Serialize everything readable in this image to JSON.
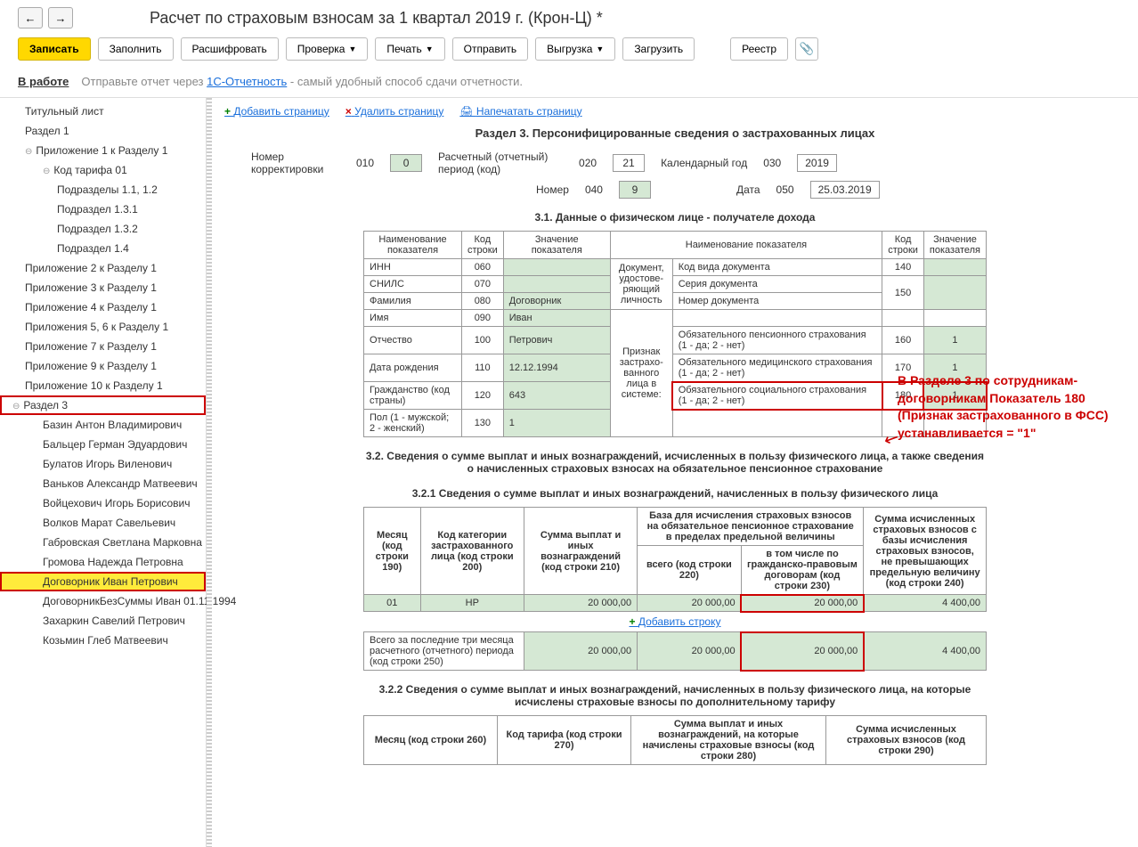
{
  "title": "Расчет по страховым взносам за 1 квартал 2019 г. (Крон-Ц) *",
  "toolbar": {
    "write": "Записать",
    "fill": "Заполнить",
    "decode": "Расшифровать",
    "check": "Проверка",
    "print": "Печать",
    "send": "Отправить",
    "export": "Выгрузка",
    "import": "Загрузить",
    "registry": "Реестр"
  },
  "status": {
    "label": "В работе",
    "hint_prefix": "Отправьте отчет через ",
    "hint_link": "1С-Отчетность",
    "hint_suffix": " - самый удобный способ сдачи отчетности."
  },
  "tree": [
    {
      "label": "Титульный лист",
      "level": 1
    },
    {
      "label": "Раздел 1",
      "level": 1
    },
    {
      "label": "Приложение 1 к Разделу 1",
      "level": 1,
      "expandable": true
    },
    {
      "label": "Код тарифа 01",
      "level": 2,
      "expandable": true
    },
    {
      "label": "Подразделы 1.1, 1.2",
      "level": 3
    },
    {
      "label": "Подраздел 1.3.1",
      "level": 3
    },
    {
      "label": "Подраздел 1.3.2",
      "level": 3
    },
    {
      "label": "Подраздел 1.4",
      "level": 3
    },
    {
      "label": "Приложение 2 к Разделу 1",
      "level": 1
    },
    {
      "label": "Приложение 3 к Разделу 1",
      "level": 1
    },
    {
      "label": "Приложение 4 к Разделу 1",
      "level": 1
    },
    {
      "label": "Приложения 5, 6 к Разделу 1",
      "level": 1
    },
    {
      "label": "Приложение 7 к Разделу 1",
      "level": 1
    },
    {
      "label": "Приложение 9 к Разделу 1",
      "level": 1
    },
    {
      "label": "Приложение 10 к Разделу 1",
      "level": 1
    },
    {
      "label": "Раздел 3",
      "level": 0,
      "expandable": true,
      "hl": "red"
    },
    {
      "label": "Базин Антон Владимирович",
      "level": 2
    },
    {
      "label": "Бальцер Герман Эдуардович",
      "level": 2
    },
    {
      "label": "Булатов Игорь Виленович",
      "level": 2
    },
    {
      "label": "Ваньков Александр Матвеевич",
      "level": 2
    },
    {
      "label": "Войцехович Игорь Борисович",
      "level": 2
    },
    {
      "label": "Волков Марат Савельевич",
      "level": 2
    },
    {
      "label": "Габровская Светлана Марковна",
      "level": 2
    },
    {
      "label": "Громова Надежда Петровна",
      "level": 2
    },
    {
      "label": "Договорник Иван Петрович",
      "level": 2,
      "hl": "yellow"
    },
    {
      "label": "ДоговорникБезСуммы Иван 01.11.1994",
      "level": 2
    },
    {
      "label": "Захаркин Савелий Петрович",
      "level": 2
    },
    {
      "label": "Козьмин Глеб Матвеевич",
      "level": 2
    }
  ],
  "page_actions": {
    "add": "Добавить страницу",
    "del": "Удалить страницу",
    "print": "Напечатать страницу"
  },
  "section3": {
    "title": "Раздел 3. Персонифицированные сведения о застрахованных лицах",
    "meta": {
      "corr_label": "Номер корректировки",
      "corr_code": "010",
      "corr_val": "0",
      "period_label": "Расчетный (отчетный) период (код)",
      "period_code": "020",
      "period_val": "21",
      "year_label": "Календарный год",
      "year_code": "030",
      "year_val": "2019",
      "num_label": "Номер",
      "num_code": "040",
      "num_val": "9",
      "date_label": "Дата",
      "date_code": "050",
      "date_val": "25.03.2019"
    },
    "s31_title": "3.1. Данные о физическом лице - получателе дохода",
    "table31": {
      "h1": "Наименование показателя",
      "h2": "Код строки",
      "h3": "Значение показателя",
      "h4": "Наименование показателя",
      "h5": "Код строки",
      "h6": "Значение показателя",
      "rows_left": [
        {
          "name": "ИНН",
          "code": "060",
          "val": ""
        },
        {
          "name": "СНИЛС",
          "code": "070",
          "val": ""
        },
        {
          "name": "Фамилия",
          "code": "080",
          "val": "Договорник"
        },
        {
          "name": "Имя",
          "code": "090",
          "val": "Иван"
        },
        {
          "name": "Отчество",
          "code": "100",
          "val": "Петрович"
        },
        {
          "name": "Дата рождения",
          "code": "110",
          "val": "12.12.1994"
        },
        {
          "name": "Гражданство (код страны)",
          "code": "120",
          "val": "643"
        },
        {
          "name": "Пол (1 - мужской; 2 - женский)",
          "code": "130",
          "val": "1"
        }
      ],
      "doc_group": "Документ, удостове-ряющий личность",
      "rows_right_doc": [
        {
          "name": "Код вида документа",
          "code": "140",
          "val": ""
        },
        {
          "name": "Серия документа",
          "code_span": true
        },
        {
          "name": "Номер документа",
          "code": "150",
          "val": ""
        }
      ],
      "ins_group": "Признак застрахо-ванного лица в системе:",
      "rows_right_ins": [
        {
          "name": "Обязательного пенсионного страхования (1 - да; 2 - нет)",
          "code": "160",
          "val": "1"
        },
        {
          "name": "Обязательного медицинского страхования (1 - да; 2 - нет)",
          "code": "170",
          "val": "1"
        },
        {
          "name": "Обязательного социального страхования (1 - да; 2 - нет)",
          "code": "180",
          "val": "1",
          "red": true
        }
      ]
    },
    "s32_title": "3.2. Сведения о сумме выплат и иных вознаграждений, исчисленных в пользу физического лица, а также сведения о начисленных страховых взносах на обязательное пенсионное страхование",
    "s321_title": "3.2.1 Сведения о сумме выплат и иных вознаграждений, начисленных в пользу физического лица",
    "table321": {
      "h_month": "Месяц (код строки 190)",
      "h_cat": "Код категории застрахованного лица (код строки 200)",
      "h_sum": "Сумма выплат и иных вознаграждений (код строки 210)",
      "h_base": "База для исчисления страховых взносов на обязательное пенсионное страхование в пределах предельной величины",
      "h_total": "всего (код строки 220)",
      "h_civil": "в том числе по гражданско-правовым договорам (код строки 230)",
      "h_calc": "Сумма исчисленных страховых взносов с базы исчисления страховых взносов, не превышающих предельную величину (код строки 240)",
      "row1": {
        "month": "01",
        "cat": "НР",
        "sum": "20 000,00",
        "total": "20 000,00",
        "civil": "20 000,00",
        "calc": "4 400,00"
      },
      "add_row": "Добавить строку",
      "total_label": "Всего за последние три месяца расчетного (отчетного) периода (код строки 250)",
      "total": {
        "sum": "20 000,00",
        "total": "20 000,00",
        "civil": "20 000,00",
        "calc": "4 400,00"
      }
    },
    "s322_title": "3.2.2 Сведения о сумме выплат и иных вознаграждений, начисленных в пользу физического лица, на которые исчислены страховые взносы по дополнительному тарифу",
    "table322": {
      "h_month": "Месяц (код строки 260)",
      "h_tariff": "Код тарифа (код строки 270)",
      "h_sum": "Сумма выплат и иных вознаграждений, на которые начислены страховые взносы (код строки 280)",
      "h_calc": "Сумма исчисленных страховых взносов (код строки 290)"
    }
  },
  "annotation": "В Разделе 3 по сотрудникам-договорникам Показатель 180 (Признак застрахованного в ФСС) устанавливается = \"1\"",
  "colors": {
    "yellow": "#ffd800",
    "green": "#d5e8d4",
    "red": "#c00",
    "link": "#1a6fdb"
  }
}
